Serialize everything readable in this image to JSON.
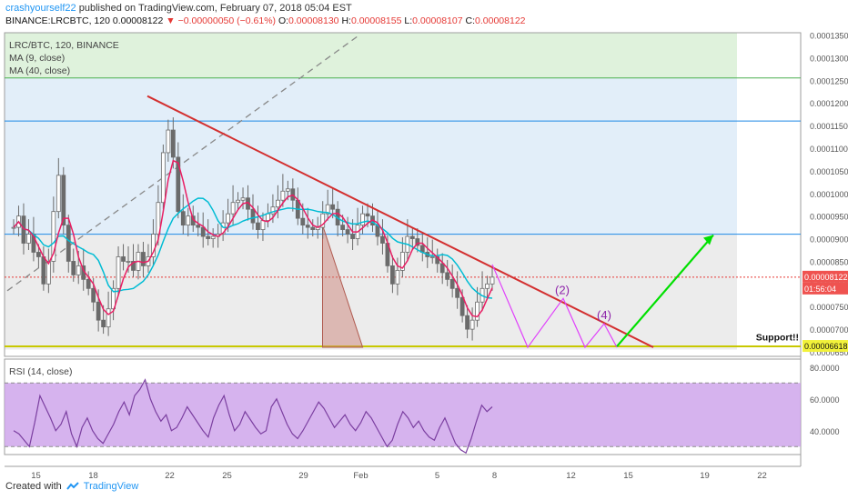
{
  "header": {
    "author": "crashyourself22",
    "published_text": "published on TradingView.com, February 07, 2018 05:04 EST",
    "symbol_line": "BINANCE:LRCBTC, 120",
    "last": "0.00008122",
    "change": "−0.00000050 (−0.61%)",
    "ohlc": {
      "o_label": "O:",
      "o": "0.00008130",
      "h_label": "H:",
      "h": "0.00008155",
      "l_label": "L:",
      "l": "0.00008107",
      "c_label": "C:",
      "c": "0.00008122"
    }
  },
  "legend": {
    "pair": "LRC/BTC, 120, BINANCE",
    "ma9": "MA (9, close)",
    "ma40": "MA (40, close)",
    "rsi": "RSI (14, close)"
  },
  "footer": {
    "created_with": "Created with",
    "brand": "TradingView"
  },
  "colors": {
    "up": "#26a69a",
    "down": "#ef5350",
    "candle": "#6b6b6b",
    "ma9": "#e91e63",
    "ma40": "#00bcd4",
    "trendline": "#d32f2f",
    "projection": "#e040fb",
    "arrow": "#00e000",
    "support": "#e8e800",
    "rsi_line": "#7b3fa0",
    "rsi_band": "#c89ae8"
  },
  "chart_data": [
    {
      "type": "candlestick",
      "price_axis": {
        "ticks": [
          "0.00013500",
          "0.00013000",
          "0.00012500",
          "0.00012000",
          "0.00011500",
          "0.00011000",
          "0.00010500",
          "0.00010000",
          "0.00009500",
          "0.00009000",
          "0.00008500",
          "0.00008000",
          "0.00007500",
          "0.00007000",
          "0.00006500"
        ],
        "range": [
          6.4e-05,
          0.0001355
        ]
      },
      "time_axis": {
        "ticks": [
          "15",
          "18",
          "22",
          "25",
          "29",
          "Feb",
          "5",
          "8",
          "12",
          "15",
          "19",
          "22"
        ]
      },
      "price_labels": {
        "current": "0.00008122",
        "countdown": "01:56:04",
        "support": "0.00006618"
      },
      "annotations": {
        "support_text": "Support!!",
        "wave_labels": [
          "(2)",
          "(4)"
        ]
      },
      "horizontal_levels": [
        0.0001255,
        0.000116,
        9.1e-05,
        8.15e-05,
        6.62e-05
      ],
      "zones": [
        {
          "from": 0.0001355,
          "to": 0.0001255,
          "color": "green"
        },
        {
          "from": 0.0001255,
          "to": 9.1e-05,
          "color": "blue"
        },
        {
          "from": 9.1e-05,
          "to": 6.55e-05,
          "color": "gray"
        }
      ],
      "close_series": [
        9.25e-05,
        9.5e-05,
        8.9e-05,
        9.1e-05,
        8.7e-05,
        8.6e-05,
        8e-05,
        8.5e-05,
        9.6e-05,
        0.000104,
        9.3e-05,
        8.5e-05,
        8.2e-05,
        8.4e-05,
        8.1e-05,
        7.9e-05,
        7.6e-05,
        7.2e-05,
        7.05e-05,
        7.45e-05,
        7.9e-05,
        8.6e-05,
        8.5e-05,
        8.5e-05,
        8.3e-05,
        8.7e-05,
        8.4e-05,
        8.6e-05,
        9.1e-05,
        9.8e-05,
        0.000109,
        0.000114,
        0.000108,
        9.6e-05,
        9.3e-05,
        9.5e-05,
        9.3e-05,
        9.25e-05,
        9.05e-05,
        9e-05,
        9.05e-05,
        9.1e-05,
        9.35e-05,
        9.55e-05,
        9.8e-05,
        9.85e-05,
        9.9e-05,
        9.65e-05,
        9.35e-05,
        9.2e-05,
        9.4e-05,
        9.55e-05,
        9.7e-05,
        9.85e-05,
        0.0001005,
        0.000101,
        9.85e-05,
        9.45e-05,
        9.3e-05,
        9.25e-05,
        9.2e-05,
        9.25e-05,
        9.55e-05,
        9.75e-05,
        9.65e-05,
        9.3e-05,
        9.2e-05,
        9.1e-05,
        9e-05,
        9.3e-05,
        9.55e-05,
        9.5e-05,
        9.3e-05,
        9.05e-05,
        8.9e-05,
        8.4e-05,
        8e-05,
        8.3e-05,
        8.7e-05,
        9.05e-05,
        9e-05,
        8.85e-05,
        8.7e-05,
        8.6e-05,
        8.6e-05,
        8.45e-05,
        8.25e-05,
        8.1e-05,
        7.9e-05,
        7.7e-05,
        7.3e-05,
        7e-05,
        7.2e-05,
        7.6e-05,
        7.9e-05,
        8e-05,
        8.15e-05
      ],
      "projection_path": [
        [
          8.0,
          8.43e-05
        ],
        [
          10.7,
          6.6e-05
        ],
        [
          12.3,
          7.68e-05
        ],
        [
          13.8,
          6.6e-05
        ],
        [
          14.7,
          7.12e-05
        ],
        [
          15.3,
          6.6e-05
        ]
      ],
      "forecast_arrow": [
        [
          15.3,
          6.62e-05
        ],
        [
          19.0,
          9.08e-05
        ]
      ]
    },
    {
      "type": "line",
      "name": "RSI (14, close)",
      "y_ticks": [
        "80.0000",
        "60.0000",
        "40.0000"
      ],
      "ylim": [
        25,
        85
      ],
      "bands": [
        70,
        30
      ],
      "values": [
        40,
        38,
        34,
        30,
        45,
        62,
        55,
        48,
        40,
        44,
        52,
        38,
        30,
        42,
        48,
        40,
        35,
        32,
        38,
        44,
        52,
        58,
        50,
        62,
        66,
        72,
        60,
        52,
        46,
        50,
        40,
        42,
        48,
        55,
        50,
        45,
        40,
        36,
        48,
        56,
        62,
        50,
        40,
        44,
        52,
        47,
        42,
        38,
        40,
        55,
        60,
        52,
        44,
        38,
        35,
        40,
        46,
        52,
        58,
        54,
        48,
        42,
        46,
        50,
        44,
        40,
        45,
        52,
        48,
        42,
        36,
        30,
        34,
        44,
        52,
        48,
        42,
        46,
        40,
        36,
        34,
        42,
        48,
        40,
        32,
        28,
        26,
        35,
        46,
        56,
        52,
        55
      ]
    }
  ]
}
